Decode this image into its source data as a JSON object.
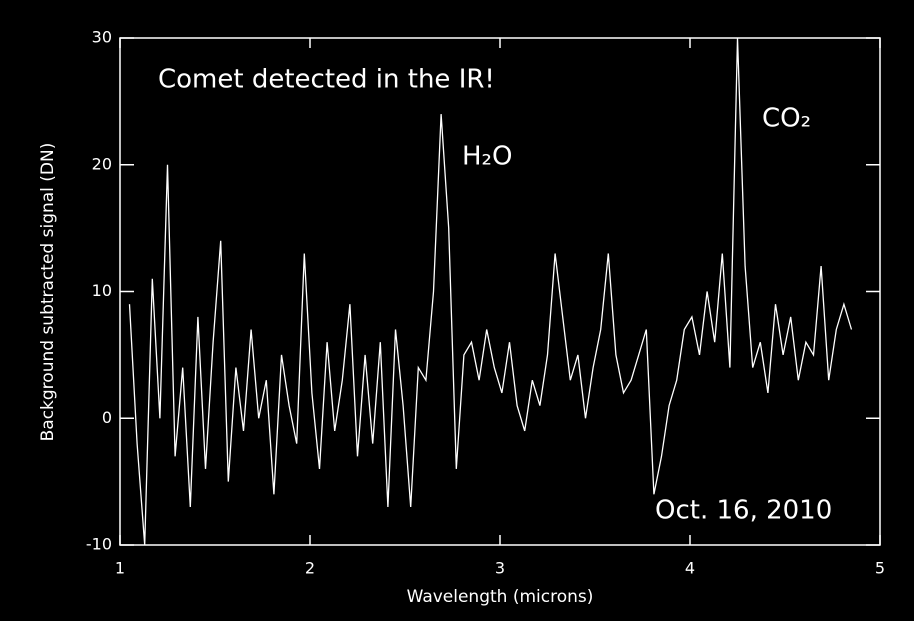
{
  "chart_data": {
    "type": "line",
    "xlabel": "Wavelength (microns)",
    "ylabel": "Background subtracted signal (DN)",
    "annotations": [
      "Comet detected in the IR!",
      "H₂O",
      "CO₂",
      "Oct. 16, 2010"
    ],
    "xlim": [
      1,
      5
    ],
    "xticks": [
      1,
      2,
      3,
      4,
      5
    ],
    "ylim": [
      -10,
      30
    ],
    "yticks": [
      -10,
      0,
      10,
      20,
      30
    ],
    "color": "#ffffff",
    "x": [
      1.05,
      1.09,
      1.13,
      1.17,
      1.21,
      1.25,
      1.29,
      1.33,
      1.37,
      1.41,
      1.45,
      1.49,
      1.53,
      1.57,
      1.61,
      1.65,
      1.69,
      1.73,
      1.77,
      1.81,
      1.85,
      1.89,
      1.93,
      1.97,
      2.01,
      2.05,
      2.09,
      2.13,
      2.17,
      2.21,
      2.25,
      2.29,
      2.33,
      2.37,
      2.41,
      2.45,
      2.49,
      2.53,
      2.57,
      2.61,
      2.65,
      2.69,
      2.73,
      2.77,
      2.81,
      2.85,
      2.89,
      2.93,
      2.97,
      3.01,
      3.05,
      3.09,
      3.13,
      3.17,
      3.21,
      3.25,
      3.29,
      3.33,
      3.37,
      3.41,
      3.45,
      3.49,
      3.53,
      3.57,
      3.61,
      3.65,
      3.69,
      3.73,
      3.77,
      3.81,
      3.85,
      3.89,
      3.93,
      3.97,
      4.01,
      4.05,
      4.09,
      4.13,
      4.17,
      4.21,
      4.25,
      4.29,
      4.33,
      4.37,
      4.41,
      4.45,
      4.49,
      4.53,
      4.57,
      4.61,
      4.65,
      4.69,
      4.73,
      4.77,
      4.81,
      4.85
    ],
    "values": [
      9,
      -2,
      -10,
      11,
      0,
      20,
      -3,
      4,
      -7,
      8,
      -4,
      6,
      14,
      -5,
      4,
      -1,
      7,
      0,
      3,
      -6,
      5,
      1,
      -2,
      13,
      2,
      -4,
      6,
      -1,
      3,
      9,
      -3,
      5,
      -2,
      6,
      -7,
      7,
      1,
      -7,
      4,
      3,
      10,
      24,
      15,
      -4,
      5,
      6,
      3,
      7,
      4,
      2,
      6,
      1,
      -1,
      3,
      1,
      5,
      13,
      8,
      3,
      5,
      0,
      4,
      7,
      13,
      5,
      2,
      3,
      5,
      7,
      -6,
      -3,
      1,
      3,
      7,
      8,
      5,
      10,
      6,
      13,
      4,
      30,
      12,
      4,
      6,
      2,
      9,
      5,
      8,
      3,
      6,
      5,
      12,
      3,
      7,
      9,
      7
    ]
  }
}
